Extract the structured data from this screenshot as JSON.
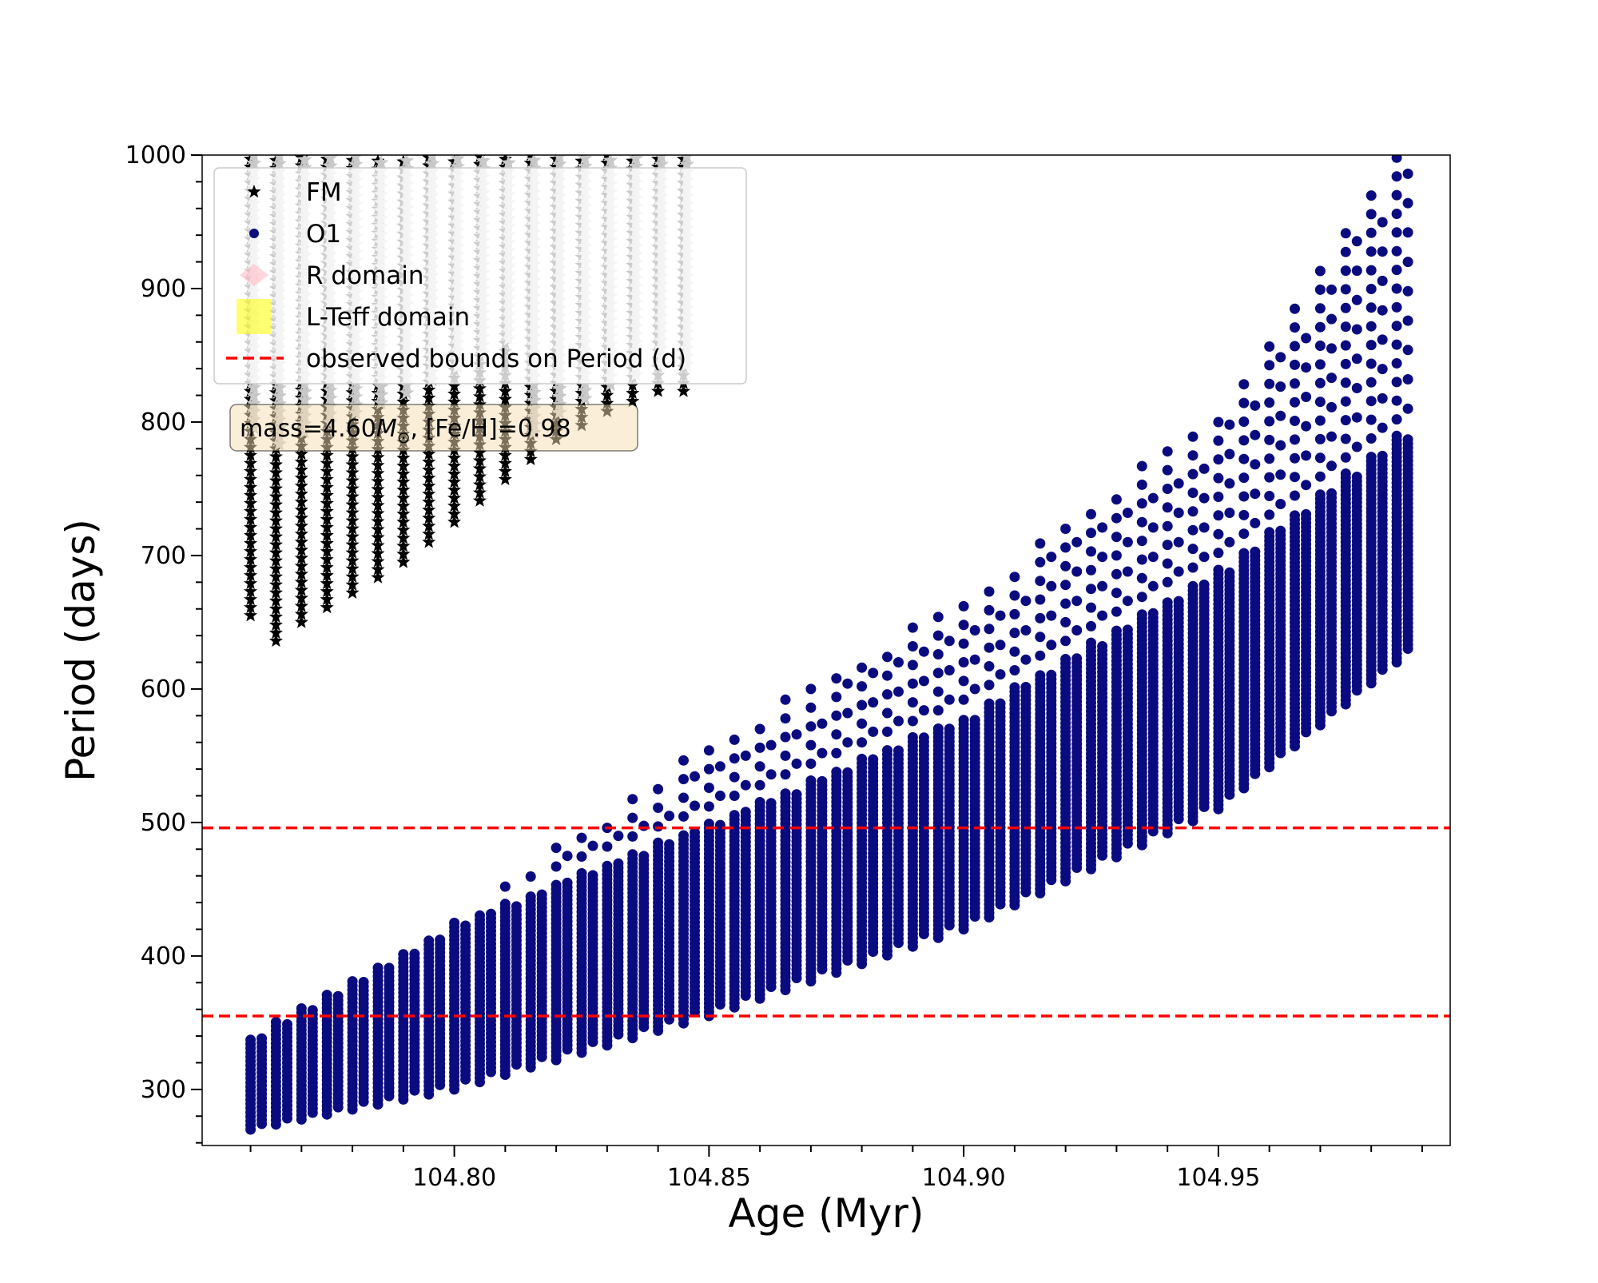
{
  "chart_data": {
    "type": "scatter",
    "xlabel": "Age (Myr)",
    "ylabel": "Period (days)",
    "xlim": [
      104.7505,
      104.9955
    ],
    "ylim": [
      258,
      1000
    ],
    "x_ticks_major": [
      104.8,
      104.85,
      104.9,
      104.95
    ],
    "x_tick_labels": [
      "104.80",
      "104.85",
      "104.90",
      "104.95"
    ],
    "x_minor_step": 0.01,
    "y_ticks_major": [
      300,
      400,
      500,
      600,
      700,
      800,
      900,
      1000
    ],
    "y_tick_labels": [
      "300",
      "400",
      "500",
      "600",
      "700",
      "800",
      "900",
      "1000"
    ],
    "y_minor_step": 20,
    "age_range": [
      104.76,
      104.985
    ],
    "n_age_columns": 46,
    "series": [
      {
        "name": "FM",
        "marker": "star",
        "color": "#000000",
        "faded_color": "#c8c8c8",
        "x_range": [
          104.76,
          104.845
        ],
        "lower_bound_points": [
          [
            104.76,
            655
          ],
          [
            104.765,
            636
          ],
          [
            104.77,
            650
          ],
          [
            104.78,
            672
          ],
          [
            104.79,
            695
          ],
          [
            104.8,
            725
          ],
          [
            104.81,
            757
          ],
          [
            104.82,
            787
          ],
          [
            104.83,
            808
          ],
          [
            104.84,
            823
          ]
        ],
        "upper_bound": 1000,
        "faded_x_range": [
          104.815,
          104.845
        ],
        "faded_band": [
          [
            104.815,
            1000
          ],
          [
            104.845,
            960
          ],
          [
            104.845,
            1000
          ]
        ]
      },
      {
        "name": "O1",
        "marker": "circle",
        "color": "#0b0b80",
        "x_range": [
          104.76,
          104.985
        ],
        "lower_envelope": [
          [
            104.76,
            270
          ],
          [
            104.8,
            300
          ],
          [
            104.85,
            355
          ],
          [
            104.9,
            420
          ],
          [
            104.95,
            510
          ],
          [
            104.985,
            620
          ]
        ],
        "dense_upper_envelope": [
          [
            104.76,
            340
          ],
          [
            104.8,
            425
          ],
          [
            104.85,
            500
          ],
          [
            104.9,
            580
          ],
          [
            104.95,
            690
          ],
          [
            104.985,
            790
          ]
        ],
        "sparse_upper_envelope": [
          [
            104.81,
            460
          ],
          [
            104.85,
            560
          ],
          [
            104.9,
            670
          ],
          [
            104.95,
            810
          ],
          [
            104.985,
            1000
          ]
        ],
        "column_start_points": [
          [
            104.76,
            285
          ],
          [
            104.8,
            340
          ],
          [
            104.85,
            390
          ],
          [
            104.9,
            450
          ],
          [
            104.95,
            520
          ],
          [
            104.985,
            690
          ]
        ],
        "column_end_points": [
          [
            104.76,
            340
          ],
          [
            104.8,
            430
          ],
          [
            104.85,
            505
          ],
          [
            104.9,
            580
          ],
          [
            104.95,
            700
          ],
          [
            104.985,
            800
          ]
        ]
      }
    ],
    "reference_lines": [
      {
        "name": "observed bounds on Period (d)",
        "y": 496,
        "color": "#ff0000",
        "style": "dashed"
      },
      {
        "name": "observed bounds on Period (d)",
        "y": 355,
        "color": "#ff0000",
        "style": "dashed"
      }
    ],
    "legend": {
      "placement": "upper-left",
      "entries": [
        {
          "label": "FM",
          "marker": "star",
          "color": "#000000"
        },
        {
          "label": "O1",
          "marker": "circle",
          "color": "#0b0b80"
        },
        {
          "label": "R domain",
          "marker": "diamond",
          "color": "#ffb6c1"
        },
        {
          "label": "L-Teff domain",
          "marker": "square",
          "color": "#ffff00"
        },
        {
          "label": "observed bounds on Period (d)",
          "marker": "dashed-line",
          "color": "#ff0000"
        }
      ]
    },
    "annotation": {
      "text_prefix": "mass=4.60",
      "text_symbol": "M",
      "text_subscript": "⊙",
      "text_suffix": ", [Fe/H]=0.98",
      "box_color": "#f5deb3",
      "box_alpha": 0.5
    }
  }
}
